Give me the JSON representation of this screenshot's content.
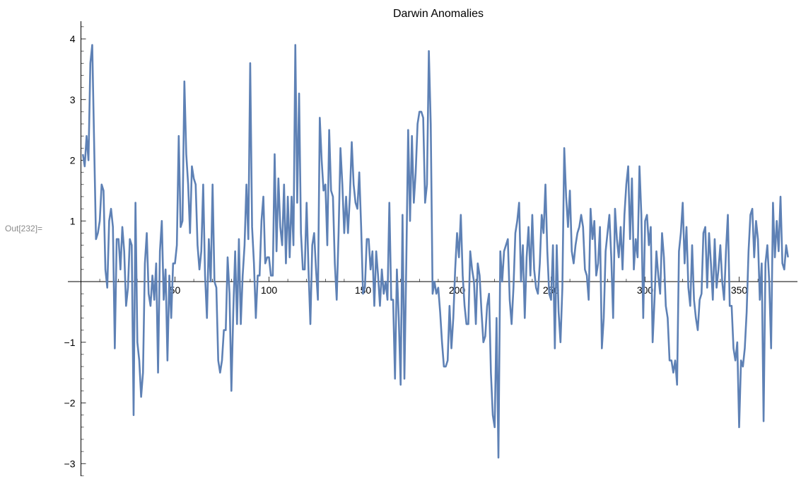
{
  "cell": {
    "out_label": "Out[232]="
  },
  "chart_data": {
    "type": "line",
    "title": "Darwin Anomalies",
    "xlabel": "",
    "ylabel": "",
    "xlim": [
      0,
      370
    ],
    "ylim": [
      -3.3,
      4.3
    ],
    "x_ticks": [
      50,
      100,
      150,
      200,
      250,
      300,
      350
    ],
    "y_ticks": [
      -3,
      -2,
      -1,
      1,
      2,
      3,
      4
    ],
    "grid": false,
    "line_color": "#5E81B5",
    "series": [
      {
        "values": [
          2.1,
          1.9,
          2.4,
          2.0,
          3.6,
          3.9,
          2.3,
          0.7,
          0.8,
          1.0,
          1.6,
          1.5,
          0.2,
          -0.1,
          1.0,
          1.2,
          0.9,
          -1.1,
          0.7,
          0.7,
          0.2,
          0.9,
          0.5,
          -0.4,
          -0.1,
          0.7,
          0.6,
          -2.2,
          1.3,
          -1.0,
          -1.3,
          -1.9,
          -1.5,
          0.3,
          0.8,
          -0.2,
          -0.4,
          0.1,
          -0.3,
          0.3,
          -1.5,
          0.5,
          1.0,
          -0.3,
          0.2,
          -1.3,
          0.1,
          -0.6,
          0.3,
          0.3,
          0.6,
          2.4,
          0.9,
          1.0,
          3.3,
          2.1,
          1.6,
          0.8,
          1.9,
          1.7,
          1.6,
          0.6,
          0.2,
          0.5,
          1.6,
          0.1,
          -0.6,
          0.7,
          0.0,
          1.6,
          0.0,
          -0.1,
          -1.3,
          -1.5,
          -1.3,
          -0.8,
          -0.8,
          0.4,
          -0.2,
          -1.8,
          -0.5,
          0.5,
          -0.7,
          0.7,
          -0.7,
          0.1,
          0.6,
          1.6,
          0.7,
          3.6,
          0.9,
          0.3,
          -0.6,
          0.1,
          0.1,
          1.0,
          1.4,
          0.3,
          0.4,
          0.4,
          0.1,
          0.1,
          2.1,
          0.5,
          1.7,
          0.9,
          0.6,
          1.6,
          0.3,
          1.4,
          0.4,
          1.4,
          0.6,
          3.9,
          1.3,
          3.1,
          0.8,
          0.2,
          0.2,
          1.3,
          0.2,
          -0.7,
          0.6,
          0.8,
          0.2,
          -0.3,
          2.7,
          2.0,
          1.5,
          1.6,
          0.6,
          2.5,
          1.5,
          1.4,
          0.3,
          -0.3,
          0.8,
          2.2,
          1.6,
          0.8,
          1.4,
          0.8,
          1.4,
          2.3,
          1.6,
          1.3,
          1.2,
          1.8,
          0.9,
          -0.2,
          -0.1,
          0.7,
          0.7,
          0.2,
          0.5,
          -0.4,
          0.5,
          0.1,
          -0.4,
          0.2,
          -0.2,
          0.0,
          -0.3,
          1.3,
          -0.3,
          -0.3,
          -1.6,
          0.2,
          -0.6,
          -1.7,
          1.1,
          -1.6,
          0.3,
          2.5,
          1.0,
          2.4,
          1.3,
          1.8,
          2.6,
          2.8,
          2.8,
          2.7,
          1.3,
          1.6,
          3.8,
          2.6,
          -0.2,
          0.0,
          -0.2,
          -0.1,
          -0.5,
          -1.0,
          -1.4,
          -1.4,
          -1.3,
          -0.4,
          -1.1,
          -0.6,
          0.2,
          0.8,
          0.4,
          1.1,
          0.1,
          -0.4,
          -0.7,
          -0.7,
          0.5,
          0.2,
          0.0,
          -0.7,
          0.3,
          0.1,
          -0.5,
          -1.0,
          -0.9,
          -0.4,
          -0.2,
          -1.5,
          -2.2,
          -2.4,
          -0.6,
          -2.9,
          0.5,
          0.0,
          0.5,
          0.6,
          0.7,
          -0.3,
          -0.7,
          -0.1,
          0.8,
          1.0,
          1.3,
          0.0,
          0.6,
          -0.6,
          0.4,
          0.9,
          0.1,
          1.1,
          0.2,
          -0.1,
          -0.2,
          0.3,
          1.1,
          0.8,
          1.6,
          0.5,
          -0.2,
          -0.3,
          0.6,
          -1.1,
          0.6,
          -0.5,
          -1.0,
          -0.1,
          2.2,
          1.4,
          0.9,
          1.5,
          0.5,
          0.3,
          0.6,
          0.8,
          0.9,
          1.1,
          0.9,
          0.2,
          0.1,
          -0.3,
          1.2,
          0.7,
          1.0,
          0.1,
          0.3,
          0.9,
          -1.1,
          -0.6,
          0.5,
          0.8,
          1.1,
          0.4,
          -0.6,
          1.2,
          0.7,
          0.4,
          0.9,
          0.2,
          1.1,
          1.6,
          1.9,
          0.7,
          1.7,
          0.2,
          0.7,
          0.4,
          1.9,
          1.1,
          -0.6,
          1.0,
          1.1,
          0.6,
          0.9,
          -1.0,
          -0.3,
          0.5,
          0.1,
          -0.2,
          0.8,
          0.4,
          -0.4,
          -0.6,
          -1.3,
          -1.3,
          -1.5,
          -1.3,
          -1.7,
          0.5,
          0.8,
          1.3,
          0.3,
          0.9,
          -0.1,
          -0.4,
          0.6,
          -0.3,
          -0.6,
          -0.8,
          -0.3,
          -0.2,
          0.8,
          0.9,
          -0.1,
          0.8,
          0.3,
          -0.3,
          0.7,
          -0.1,
          0.2,
          0.6,
          0.0,
          -0.3,
          0.5,
          1.1,
          -0.4,
          -0.4,
          -1.1,
          -1.3,
          -1.0,
          -2.4,
          -1.3,
          -1.4,
          -1.1,
          -0.5,
          0.5,
          1.1,
          1.2,
          0.4,
          1.0,
          0.7,
          -0.3,
          0.3,
          -2.3,
          0.3,
          0.6,
          0.0,
          -1.1,
          1.3,
          0.4,
          1.0,
          0.5,
          1.4,
          0.3,
          0.2,
          0.6,
          0.4
        ]
      }
    ]
  }
}
